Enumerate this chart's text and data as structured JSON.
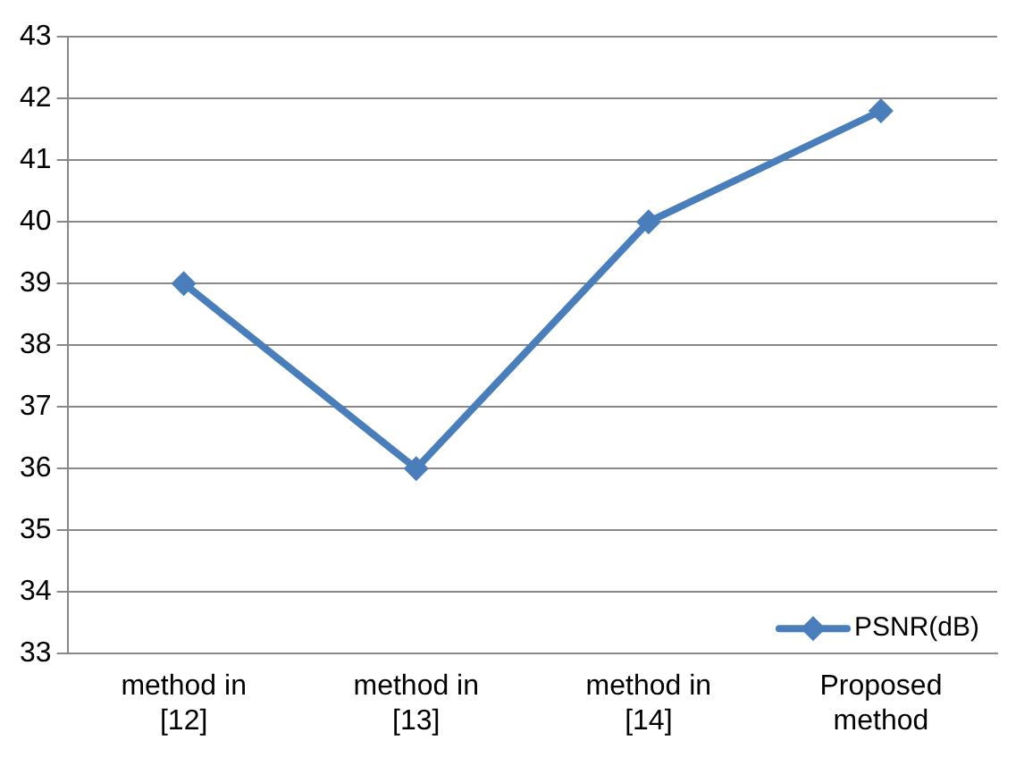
{
  "chart_data": {
    "type": "line",
    "categories": [
      "method in [12]",
      "method in [13]",
      "method in [14]",
      "Proposed method"
    ],
    "series": [
      {
        "name": "PSNR(dB)",
        "color": "#4a7ebb",
        "values": [
          39,
          36,
          40,
          41.8
        ]
      }
    ],
    "ylim": [
      33,
      43
    ],
    "yticks": [
      33,
      34,
      35,
      36,
      37,
      38,
      39,
      40,
      41,
      42,
      43
    ],
    "grid": "y",
    "legend": "bottom right",
    "marker": "diamond",
    "line_style": "solid"
  }
}
